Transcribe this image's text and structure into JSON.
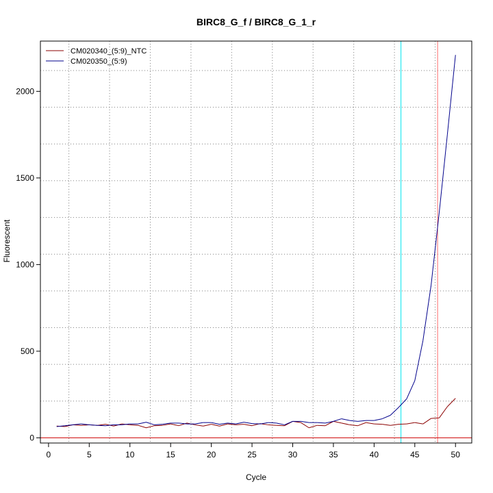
{
  "chart_data": {
    "type": "line",
    "title": "BIRC8_G_f / BIRC8_G_1_r",
    "xlabel": "Cycle",
    "ylabel": "Fluorescent",
    "xlim": [
      -1.0,
      52.0
    ],
    "ylim": [
      -30,
      2290
    ],
    "x_ticks": [
      0,
      5,
      10,
      15,
      20,
      25,
      30,
      35,
      40,
      45,
      50
    ],
    "y_ticks": [
      0,
      500,
      1000,
      1500,
      2000
    ],
    "grid": true,
    "legend_position": "top-left",
    "x": [
      1,
      2,
      3,
      4,
      5,
      6,
      7,
      8,
      9,
      10,
      11,
      12,
      13,
      14,
      15,
      16,
      17,
      18,
      19,
      20,
      21,
      22,
      23,
      24,
      25,
      26,
      27,
      28,
      29,
      30,
      31,
      32,
      33,
      34,
      35,
      36,
      37,
      38,
      39,
      40,
      41,
      42,
      43,
      44,
      45,
      46,
      47,
      48,
      49,
      50
    ],
    "series": [
      {
        "name": "CM020340_(5:9)_NTC",
        "color": "#8b0000",
        "values": [
          68,
          65,
          75,
          72,
          75,
          72,
          78,
          68,
          80,
          75,
          72,
          58,
          70,
          72,
          80,
          70,
          85,
          75,
          68,
          78,
          68,
          80,
          75,
          78,
          70,
          82,
          75,
          72,
          70,
          95,
          88,
          58,
          72,
          70,
          95,
          85,
          75,
          70,
          88,
          80,
          78,
          72,
          78,
          80,
          88,
          80,
          112,
          115,
          180,
          228
        ]
      },
      {
        "name": "CM020350_(5:9)",
        "color": "#00008b",
        "values": [
          65,
          70,
          75,
          80,
          75,
          72,
          70,
          75,
          75,
          80,
          80,
          90,
          75,
          78,
          85,
          85,
          80,
          80,
          88,
          88,
          78,
          85,
          80,
          90,
          82,
          80,
          88,
          85,
          75,
          95,
          95,
          88,
          88,
          85,
          95,
          110,
          100,
          95,
          100,
          100,
          110,
          130,
          175,
          225,
          330,
          560,
          880,
          1300,
          1750,
          2210
        ]
      }
    ],
    "vertical_markers": [
      {
        "cycle": 43.3,
        "color": "#00e5ee"
      },
      {
        "cycle": 47.8,
        "color": "#ff6a6a"
      }
    ],
    "horizontal_markers": [
      {
        "value": 0,
        "color": "#cd0000"
      }
    ]
  },
  "style": {
    "background": "#ffffff",
    "axis_color": "#000000",
    "grid_color": "#7f7f7f"
  }
}
